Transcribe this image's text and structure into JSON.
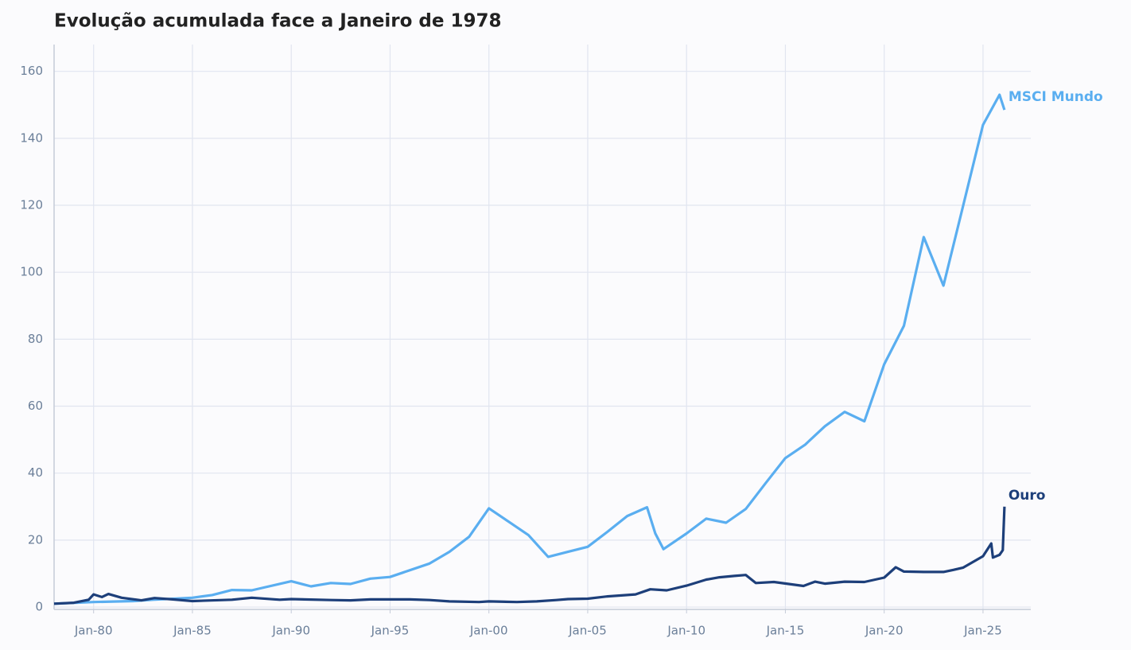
{
  "chart_data": {
    "type": "line",
    "title": "Evolução acumulada face a Janeiro de 1978",
    "xlim": [
      "1978-01",
      "2027-06"
    ],
    "ylim": [
      -0.7,
      168
    ],
    "xticks": [
      {
        "value": "1980-01",
        "label": "Jan-80"
      },
      {
        "value": "1985-01",
        "label": "Jan-85"
      },
      {
        "value": "1990-01",
        "label": "Jan-90"
      },
      {
        "value": "1995-01",
        "label": "Jan-95"
      },
      {
        "value": "2000-01",
        "label": "Jan-00"
      },
      {
        "value": "2005-01",
        "label": "Jan-05"
      },
      {
        "value": "2010-01",
        "label": "Jan-10"
      },
      {
        "value": "2015-01",
        "label": "Jan-15"
      },
      {
        "value": "2020-01",
        "label": "Jan-20"
      },
      {
        "value": "2025-01",
        "label": "Jan-25"
      }
    ],
    "yticks": [
      0,
      20,
      40,
      60,
      80,
      100,
      120,
      140,
      160
    ],
    "grid": true,
    "series": [
      {
        "name": "MSCI Mundo",
        "color": "#5aaef0",
        "x": [
          "1978-01",
          "1980-01",
          "1982-01",
          "1983-01",
          "1985-01",
          "1986-01",
          "1987-01",
          "1988-01",
          "1990-01",
          "1991-01",
          "1992-01",
          "1993-01",
          "1994-01",
          "1995-01",
          "1997-01",
          "1998-01",
          "1999-01",
          "2000-01",
          "2001-01",
          "2002-01",
          "2003-01",
          "2004-01",
          "2005-01",
          "2006-01",
          "2007-01",
          "2008-01",
          "2008-06",
          "2008-11",
          "2010-01",
          "2011-01",
          "2012-01",
          "2013-01",
          "2014-01",
          "2015-01",
          "2016-01",
          "2017-01",
          "2018-01",
          "2019-01",
          "2020-01",
          "2021-01",
          "2022-01",
          "2023-01",
          "2024-01",
          "2025-01",
          "2025-11",
          "2026-02"
        ],
        "values": [
          1,
          1.5,
          1.8,
          2.2,
          2.8,
          3.6,
          5.1,
          5.0,
          7.7,
          6.2,
          7.2,
          6.9,
          8.5,
          9.0,
          13,
          16.5,
          21,
          29.5,
          25.5,
          21.5,
          15,
          16.5,
          18,
          22.5,
          27.2,
          29.8,
          22,
          17.3,
          22,
          26.4,
          25.2,
          29.3,
          37,
          44.5,
          48.5,
          54,
          58.3,
          55.5,
          72.5,
          84,
          110.5,
          96,
          120,
          144,
          153,
          148.5
        ]
      },
      {
        "name": "Ouro",
        "color": "#1d3f7a",
        "x": [
          "1978-01",
          "1979-01",
          "1979-10",
          "1980-01",
          "1980-06",
          "1980-10",
          "1981-06",
          "1982-06",
          "1983-02",
          "1984-01",
          "1985-01",
          "1987-01",
          "1988-01",
          "1989-06",
          "1990-01",
          "1992-01",
          "1993-01",
          "1994-01",
          "1996-01",
          "1997-01",
          "1998-01",
          "1999-07",
          "2000-01",
          "2001-06",
          "2002-06",
          "2003-06",
          "2004-01",
          "2005-01",
          "2006-01",
          "2007-06",
          "2008-03",
          "2009-01",
          "2010-01",
          "2011-01",
          "2011-09",
          "2012-06",
          "2013-01",
          "2013-07",
          "2014-06",
          "2015-12",
          "2016-07",
          "2017-01",
          "2018-01",
          "2019-01",
          "2020-01",
          "2020-08",
          "2021-01",
          "2022-01",
          "2023-01",
          "2023-07",
          "2024-01",
          "2025-01",
          "2025-06",
          "2025-07",
          "2025-11",
          "2026-01",
          "2026-02"
        ],
        "values": [
          1,
          1.3,
          2.2,
          3.8,
          3,
          3.9,
          2.8,
          2,
          2.7,
          2.3,
          1.8,
          2.2,
          2.8,
          2.2,
          2.4,
          2.1,
          2.0,
          2.3,
          2.3,
          2.1,
          1.7,
          1.5,
          1.7,
          1.5,
          1.7,
          2.1,
          2.4,
          2.5,
          3.2,
          3.8,
          5.3,
          5,
          6.4,
          8.2,
          8.9,
          9.3,
          9.6,
          7.2,
          7.5,
          6.3,
          7.6,
          7,
          7.6,
          7.5,
          8.8,
          11.9,
          10.6,
          10.5,
          10.5,
          11.1,
          11.8,
          15.2,
          19,
          14.8,
          15.6,
          17,
          30
        ]
      }
    ]
  }
}
